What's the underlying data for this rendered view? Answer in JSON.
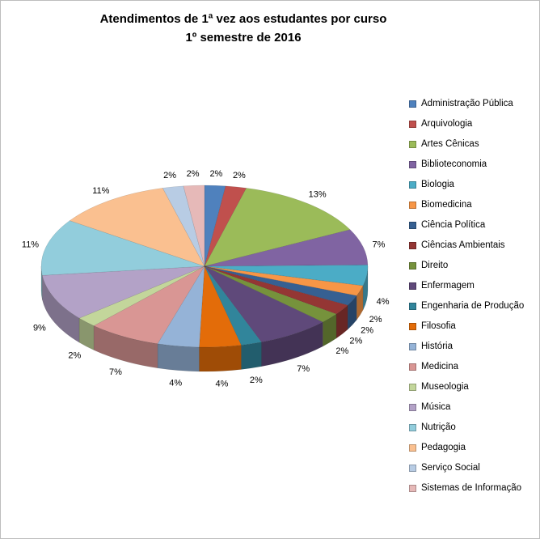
{
  "chart_data": {
    "type": "pie",
    "effect": "3d",
    "title_line1": "Atendimentos de 1ª vez aos estudantes por curso",
    "title_line2": "1º semestre de 2016",
    "legend_position": "right",
    "data_labels": "percent-outside",
    "categories": [
      "Administração Pública",
      "Arquivologia",
      "Artes Cênicas",
      "Biblioteconomia",
      "Biologia",
      "Biomedicina",
      "Ciência Política",
      "Ciências Ambientais",
      "Direito",
      "Enfermagem",
      "Engenharia de Produção",
      "Filosofia",
      "História",
      "Medicina",
      "Museologia",
      "Música",
      "Nutrição",
      "Pedagogia",
      "Serviço Social",
      "Sistemas de Informação"
    ],
    "values_percent": [
      2,
      2,
      13,
      7,
      4,
      2,
      2,
      2,
      2,
      7,
      2,
      4,
      4,
      7,
      2,
      9,
      11,
      11,
      2,
      2
    ],
    "labels": [
      "2%",
      "2%",
      "13%",
      "7%",
      "4%",
      "2%",
      "2%",
      "2%",
      "2%",
      "7%",
      "2%",
      "4%",
      "4%",
      "7%",
      "2%",
      "9%",
      "11%",
      "11%",
      "2%",
      "2%"
    ],
    "colors": [
      "#4F81BD",
      "#C0504D",
      "#9BBB59",
      "#8064A2",
      "#4BACC6",
      "#F79646",
      "#366092",
      "#943634",
      "#76923C",
      "#5F497A",
      "#31859B",
      "#E36C09",
      "#95B3D7",
      "#D99694",
      "#C3D69B",
      "#B3A2C7",
      "#92CDDC",
      "#FAC090",
      "#B8CCE4",
      "#E6B9B8"
    ]
  }
}
